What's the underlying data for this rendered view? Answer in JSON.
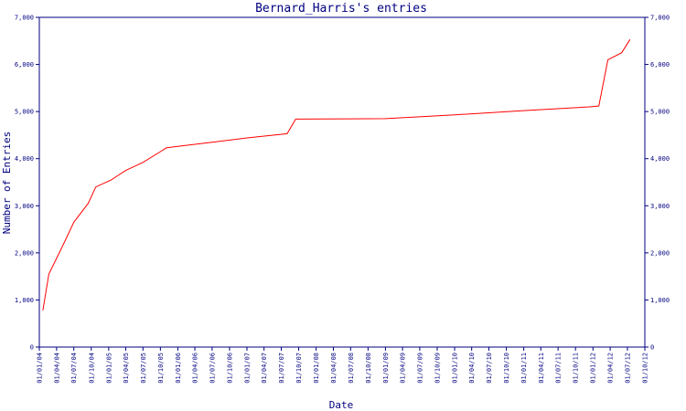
{
  "chart_data": {
    "type": "line",
    "title": "Bernard_Harris's entries",
    "xlabel": "Date",
    "ylabel": "Number of Entries",
    "ylim": [
      0,
      7000
    ],
    "yticks": [
      "0",
      "1,000",
      "2,000",
      "3,000",
      "4,000",
      "5,000",
      "6,000",
      "7,000"
    ],
    "ytick_values": [
      0,
      1000,
      2000,
      3000,
      4000,
      5000,
      6000,
      7000
    ],
    "xticks": [
      "01/01/04",
      "01/04/04",
      "01/07/04",
      "01/10/04",
      "01/01/05",
      "01/04/05",
      "01/07/05",
      "01/10/05",
      "01/01/06",
      "01/04/06",
      "01/07/06",
      "01/10/06",
      "01/01/07",
      "01/04/07",
      "01/07/07",
      "01/10/07",
      "01/01/08",
      "01/04/08",
      "01/07/08",
      "01/10/08",
      "01/01/09",
      "01/04/09",
      "01/07/09",
      "01/10/09",
      "01/01/10",
      "01/04/10",
      "01/07/10",
      "01/10/10",
      "01/01/11",
      "01/04/11",
      "01/07/11",
      "01/10/11",
      "01/01/12",
      "01/04/12",
      "01/07/12",
      "01/10/12"
    ],
    "xlim": [
      "2004-01-01",
      "2012-10-01"
    ],
    "grid": false,
    "series": [
      {
        "color": "#ff0000",
        "points": [
          [
            "2004-01-20",
            780
          ],
          [
            "2004-02-20",
            1550
          ],
          [
            "2004-05-15",
            2250
          ],
          [
            "2004-07-01",
            2650
          ],
          [
            "2004-09-15",
            3050
          ],
          [
            "2004-10-25",
            3400
          ],
          [
            "2005-01-15",
            3550
          ],
          [
            "2005-04-01",
            3750
          ],
          [
            "2005-07-01",
            3920
          ],
          [
            "2005-10-01",
            4150
          ],
          [
            "2005-11-01",
            4230
          ],
          [
            "2006-01-01",
            4260
          ],
          [
            "2006-07-01",
            4350
          ],
          [
            "2007-01-01",
            4440
          ],
          [
            "2007-08-01",
            4530
          ],
          [
            "2007-09-15",
            4840
          ],
          [
            "2009-01-01",
            4850
          ],
          [
            "2010-01-01",
            4930
          ],
          [
            "2011-01-01",
            5020
          ],
          [
            "2011-12-15",
            5100
          ],
          [
            "2012-02-01",
            5120
          ],
          [
            "2012-03-20",
            6100
          ],
          [
            "2012-06-01",
            6250
          ],
          [
            "2012-07-15",
            6530
          ]
        ]
      }
    ]
  }
}
